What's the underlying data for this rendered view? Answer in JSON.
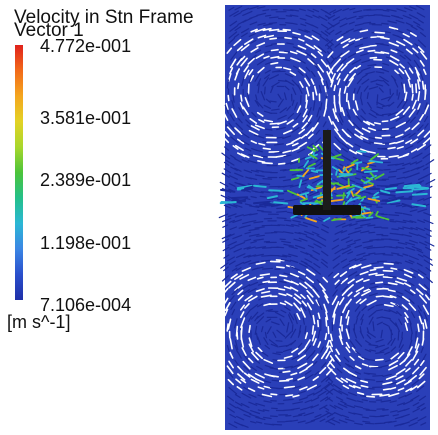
{
  "legend": {
    "title": "Velocity in Stn Frame",
    "subtitle": "Vector 1",
    "ticks": [
      "4.772e-001",
      "3.581e-001",
      "2.389e-001",
      "1.198e-001",
      "7.106e-004"
    ],
    "units": "[m s^-1]"
  },
  "colors": {
    "max": "#e0221c",
    "high": "#f4a61f",
    "mid": "#4cc43a",
    "low": "#2bb7d5",
    "min": "#1f2fa8",
    "vector_dark": "#1a2a9a",
    "vector_light": "#ffffff"
  }
}
